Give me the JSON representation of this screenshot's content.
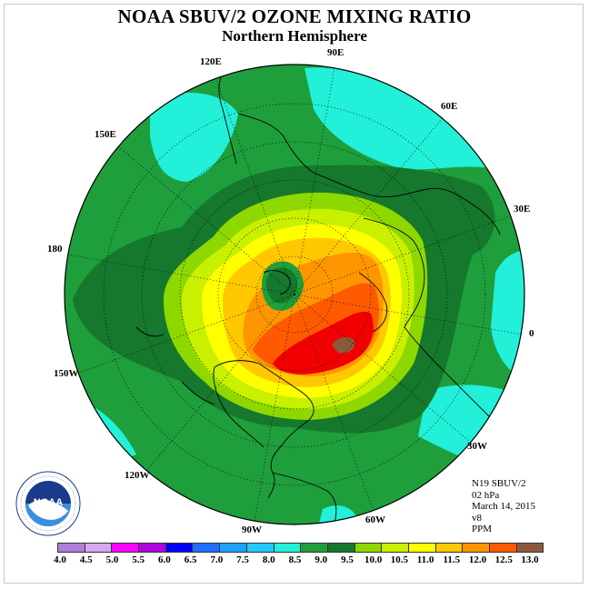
{
  "title": "NOAA SBUV/2 OZONE MIXING RATIO",
  "subtitle": "Northern Hemisphere",
  "longitude_labels": [
    "90E",
    "60E",
    "30E",
    "0",
    "30W",
    "60W",
    "90W",
    "120W",
    "150W",
    "180",
    "150E",
    "120E"
  ],
  "info": {
    "instrument": "N19 SBUV/2",
    "level": "02 hPa",
    "date": "March 14, 2015",
    "version": "v8",
    "units": "PPM"
  },
  "logo": {
    "text": "NOAA",
    "ring_text": "NATIONAL OCEANIC AND ATMOSPHERIC ADMINISTRATION U.S. DEPARTMENT OF COMMERCE"
  },
  "colorbar": {
    "ticks": [
      "4.0",
      "4.5",
      "5.0",
      "5.5",
      "6.0",
      "6.5",
      "7.0",
      "7.5",
      "8.0",
      "8.5",
      "9.0",
      "9.5",
      "10.0",
      "10.5",
      "11.0",
      "11.5",
      "12.0",
      "12.5",
      "13.0"
    ],
    "colors": [
      "#b07ed8",
      "#d8a8f0",
      "#ff00ff",
      "#b000e0",
      "#0000ff",
      "#1e6eff",
      "#1ea0ff",
      "#22c8ff",
      "#22f0d8",
      "#1f9e3c",
      "#15782c",
      "#8ed800",
      "#c8f000",
      "#ffff00",
      "#ffc800",
      "#ff9600",
      "#ff5a00",
      "#f00000",
      "#8b5a3c"
    ]
  },
  "field_colors": {
    "ocean_cyan": "#22f0d8",
    "green_8_5": "#1f9e3c",
    "dark_green_9": "#15782c",
    "lime": "#8ed800",
    "yellowgreen": "#c8f000",
    "yellow": "#ffff00",
    "gold": "#ffc800",
    "orange": "#ff9600",
    "redorange": "#ff5a00",
    "red": "#f00000",
    "brown": "#8b5a3c"
  }
}
